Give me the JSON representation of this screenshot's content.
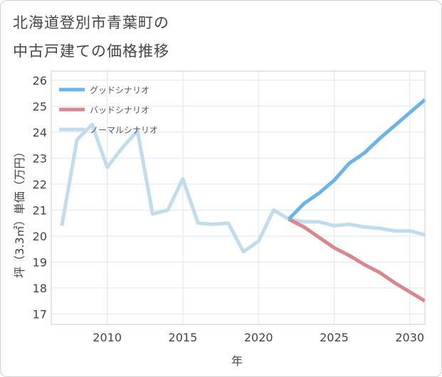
{
  "title": {
    "line1": "北海道登別市青葉町の",
    "line2": "中古戸建ての価格推移"
  },
  "chart_data": {
    "type": "line",
    "xlabel": "年",
    "ylabel": "坪（3.3㎡）単価（万円）",
    "xlim": [
      2006.3,
      2031
    ],
    "ylim": [
      16.6,
      26.35
    ],
    "xticks": [
      2010,
      2015,
      2020,
      2025,
      2030
    ],
    "yticks": [
      17,
      18,
      19,
      20,
      21,
      22,
      23,
      24,
      25,
      26
    ],
    "grid": true,
    "legend_position": "top-left",
    "series": [
      {
        "name": "グッドシナリオ",
        "color": "#6ab4ea",
        "x": [
          2022,
          2023,
          2024,
          2025,
          2026,
          2027,
          2028,
          2029,
          2030,
          2031
        ],
        "values": [
          20.65,
          21.25,
          21.65,
          22.15,
          22.8,
          23.2,
          23.75,
          24.25,
          24.75,
          25.25
        ]
      },
      {
        "name": "バッドシナリオ",
        "color": "#d9868c",
        "x": [
          2022,
          2023,
          2024,
          2025,
          2026,
          2027,
          2028,
          2029,
          2030,
          2031
        ],
        "values": [
          20.65,
          20.35,
          19.95,
          19.55,
          19.25,
          18.9,
          18.6,
          18.2,
          17.85,
          17.5
        ]
      },
      {
        "name": "ノーマルシナリオ",
        "color": "#c0dced",
        "x": [
          2007,
          2008,
          2009,
          2010,
          2011,
          2012,
          2013,
          2014,
          2015,
          2016,
          2017,
          2018,
          2019,
          2020,
          2021,
          2022,
          2023,
          2024,
          2025,
          2026,
          2027,
          2028,
          2029,
          2030,
          2031
        ],
        "values": [
          20.4,
          23.7,
          24.3,
          22.65,
          23.4,
          24.05,
          20.85,
          21.0,
          22.2,
          20.5,
          20.45,
          20.5,
          19.4,
          19.8,
          21.0,
          20.65,
          20.55,
          20.55,
          20.4,
          20.45,
          20.35,
          20.3,
          20.2,
          20.2,
          20.05
        ]
      }
    ]
  }
}
